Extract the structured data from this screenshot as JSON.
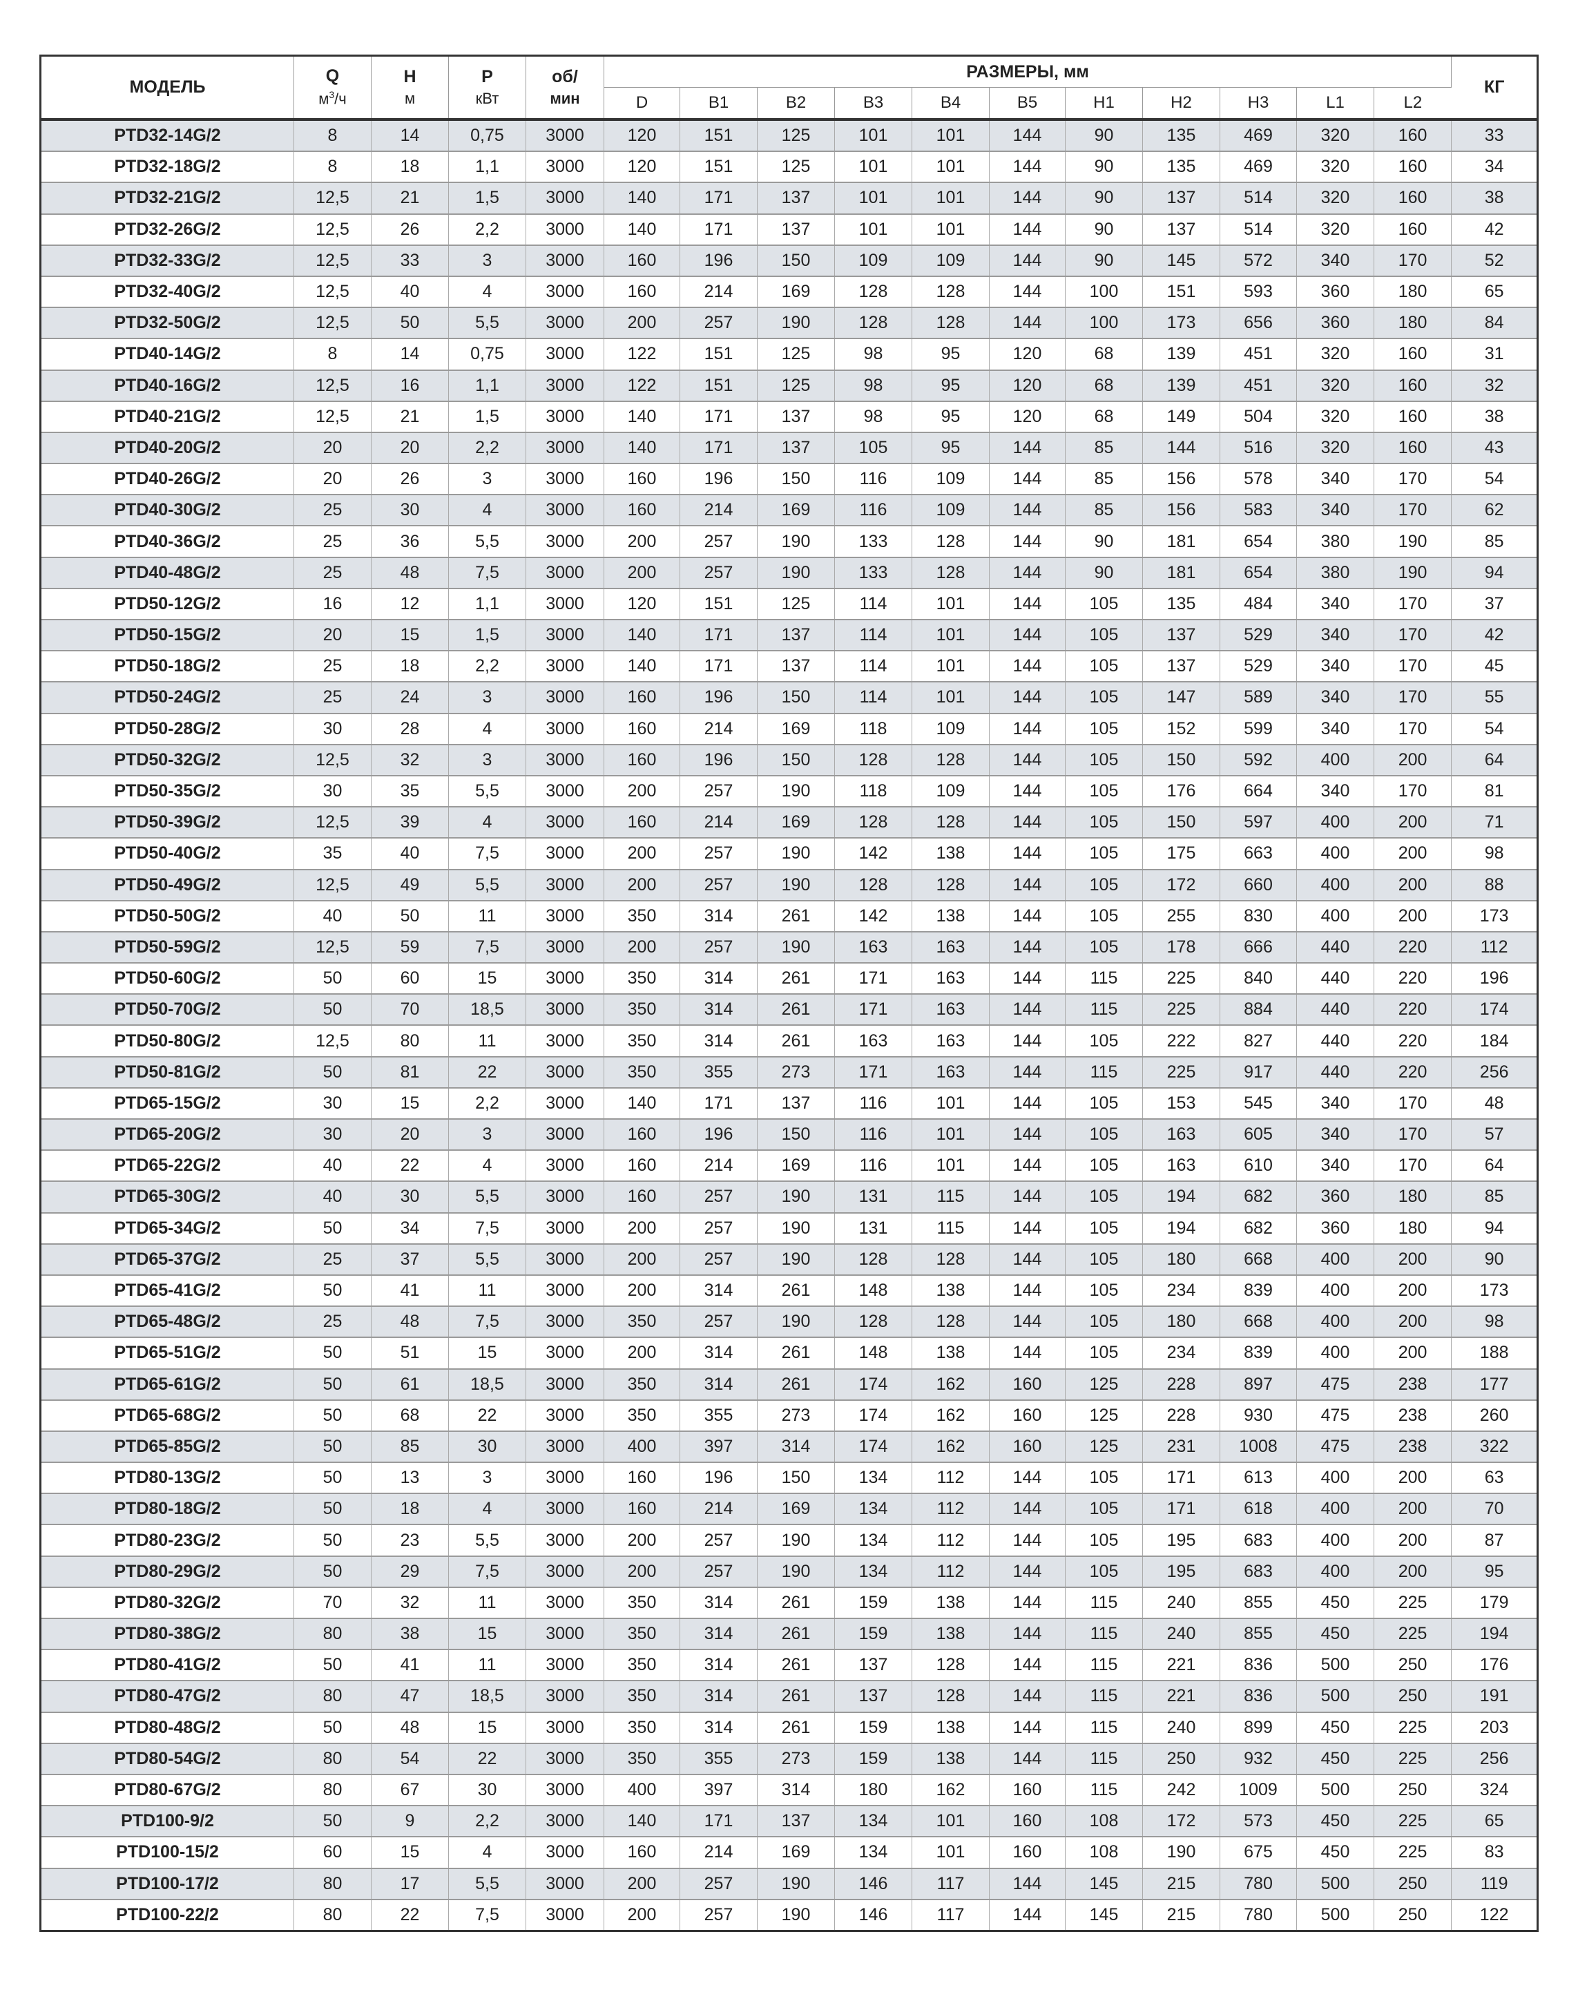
{
  "header": {
    "model": "МОДЕЛЬ",
    "q": "Q",
    "q_unit_base": "м",
    "q_unit_sup": "3",
    "q_unit_rest": "/ч",
    "h": "H",
    "h_unit": "м",
    "p": "P",
    "p_unit": "кВт",
    "rpm": "об/",
    "rpm_unit": "мин",
    "dimensions": "РАЗМЕРЫ, мм",
    "dim_columns": [
      "D",
      "B1",
      "B2",
      "B3",
      "B4",
      "B5",
      "H1",
      "H2",
      "H3",
      "L1",
      "L2"
    ],
    "kg": "КГ"
  },
  "rows": [
    [
      "PTD32-14G/2",
      "8",
      "14",
      "0,75",
      "3000",
      "120",
      "151",
      "125",
      "101",
      "101",
      "144",
      "90",
      "135",
      "469",
      "320",
      "160",
      "33"
    ],
    [
      "PTD32-18G/2",
      "8",
      "18",
      "1,1",
      "3000",
      "120",
      "151",
      "125",
      "101",
      "101",
      "144",
      "90",
      "135",
      "469",
      "320",
      "160",
      "34"
    ],
    [
      "PTD32-21G/2",
      "12,5",
      "21",
      "1,5",
      "3000",
      "140",
      "171",
      "137",
      "101",
      "101",
      "144",
      "90",
      "137",
      "514",
      "320",
      "160",
      "38"
    ],
    [
      "PTD32-26G/2",
      "12,5",
      "26",
      "2,2",
      "3000",
      "140",
      "171",
      "137",
      "101",
      "101",
      "144",
      "90",
      "137",
      "514",
      "320",
      "160",
      "42"
    ],
    [
      "PTD32-33G/2",
      "12,5",
      "33",
      "3",
      "3000",
      "160",
      "196",
      "150",
      "109",
      "109",
      "144",
      "90",
      "145",
      "572",
      "340",
      "170",
      "52"
    ],
    [
      "PTD32-40G/2",
      "12,5",
      "40",
      "4",
      "3000",
      "160",
      "214",
      "169",
      "128",
      "128",
      "144",
      "100",
      "151",
      "593",
      "360",
      "180",
      "65"
    ],
    [
      "PTD32-50G/2",
      "12,5",
      "50",
      "5,5",
      "3000",
      "200",
      "257",
      "190",
      "128",
      "128",
      "144",
      "100",
      "173",
      "656",
      "360",
      "180",
      "84"
    ],
    [
      "PTD40-14G/2",
      "8",
      "14",
      "0,75",
      "3000",
      "122",
      "151",
      "125",
      "98",
      "95",
      "120",
      "68",
      "139",
      "451",
      "320",
      "160",
      "31"
    ],
    [
      "PTD40-16G/2",
      "12,5",
      "16",
      "1,1",
      "3000",
      "122",
      "151",
      "125",
      "98",
      "95",
      "120",
      "68",
      "139",
      "451",
      "320",
      "160",
      "32"
    ],
    [
      "PTD40-21G/2",
      "12,5",
      "21",
      "1,5",
      "3000",
      "140",
      "171",
      "137",
      "98",
      "95",
      "120",
      "68",
      "149",
      "504",
      "320",
      "160",
      "38"
    ],
    [
      "PTD40-20G/2",
      "20",
      "20",
      "2,2",
      "3000",
      "140",
      "171",
      "137",
      "105",
      "95",
      "144",
      "85",
      "144",
      "516",
      "320",
      "160",
      "43"
    ],
    [
      "PTD40-26G/2",
      "20",
      "26",
      "3",
      "3000",
      "160",
      "196",
      "150",
      "116",
      "109",
      "144",
      "85",
      "156",
      "578",
      "340",
      "170",
      "54"
    ],
    [
      "PTD40-30G/2",
      "25",
      "30",
      "4",
      "3000",
      "160",
      "214",
      "169",
      "116",
      "109",
      "144",
      "85",
      "156",
      "583",
      "340",
      "170",
      "62"
    ],
    [
      "PTD40-36G/2",
      "25",
      "36",
      "5,5",
      "3000",
      "200",
      "257",
      "190",
      "133",
      "128",
      "144",
      "90",
      "181",
      "654",
      "380",
      "190",
      "85"
    ],
    [
      "PTD40-48G/2",
      "25",
      "48",
      "7,5",
      "3000",
      "200",
      "257",
      "190",
      "133",
      "128",
      "144",
      "90",
      "181",
      "654",
      "380",
      "190",
      "94"
    ],
    [
      "PTD50-12G/2",
      "16",
      "12",
      "1,1",
      "3000",
      "120",
      "151",
      "125",
      "114",
      "101",
      "144",
      "105",
      "135",
      "484",
      "340",
      "170",
      "37"
    ],
    [
      "PTD50-15G/2",
      "20",
      "15",
      "1,5",
      "3000",
      "140",
      "171",
      "137",
      "114",
      "101",
      "144",
      "105",
      "137",
      "529",
      "340",
      "170",
      "42"
    ],
    [
      "PTD50-18G/2",
      "25",
      "18",
      "2,2",
      "3000",
      "140",
      "171",
      "137",
      "114",
      "101",
      "144",
      "105",
      "137",
      "529",
      "340",
      "170",
      "45"
    ],
    [
      "PTD50-24G/2",
      "25",
      "24",
      "3",
      "3000",
      "160",
      "196",
      "150",
      "114",
      "101",
      "144",
      "105",
      "147",
      "589",
      "340",
      "170",
      "55"
    ],
    [
      "PTD50-28G/2",
      "30",
      "28",
      "4",
      "3000",
      "160",
      "214",
      "169",
      "118",
      "109",
      "144",
      "105",
      "152",
      "599",
      "340",
      "170",
      "54"
    ],
    [
      "PTD50-32G/2",
      "12,5",
      "32",
      "3",
      "3000",
      "160",
      "196",
      "150",
      "128",
      "128",
      "144",
      "105",
      "150",
      "592",
      "400",
      "200",
      "64"
    ],
    [
      "PTD50-35G/2",
      "30",
      "35",
      "5,5",
      "3000",
      "200",
      "257",
      "190",
      "118",
      "109",
      "144",
      "105",
      "176",
      "664",
      "340",
      "170",
      "81"
    ],
    [
      "PTD50-39G/2",
      "12,5",
      "39",
      "4",
      "3000",
      "160",
      "214",
      "169",
      "128",
      "128",
      "144",
      "105",
      "150",
      "597",
      "400",
      "200",
      "71"
    ],
    [
      "PTD50-40G/2",
      "35",
      "40",
      "7,5",
      "3000",
      "200",
      "257",
      "190",
      "142",
      "138",
      "144",
      "105",
      "175",
      "663",
      "400",
      "200",
      "98"
    ],
    [
      "PTD50-49G/2",
      "12,5",
      "49",
      "5,5",
      "3000",
      "200",
      "257",
      "190",
      "128",
      "128",
      "144",
      "105",
      "172",
      "660",
      "400",
      "200",
      "88"
    ],
    [
      "PTD50-50G/2",
      "40",
      "50",
      "11",
      "3000",
      "350",
      "314",
      "261",
      "142",
      "138",
      "144",
      "105",
      "255",
      "830",
      "400",
      "200",
      "173"
    ],
    [
      "PTD50-59G/2",
      "12,5",
      "59",
      "7,5",
      "3000",
      "200",
      "257",
      "190",
      "163",
      "163",
      "144",
      "105",
      "178",
      "666",
      "440",
      "220",
      "112"
    ],
    [
      "PTD50-60G/2",
      "50",
      "60",
      "15",
      "3000",
      "350",
      "314",
      "261",
      "171",
      "163",
      "144",
      "115",
      "225",
      "840",
      "440",
      "220",
      "196"
    ],
    [
      "PTD50-70G/2",
      "50",
      "70",
      "18,5",
      "3000",
      "350",
      "314",
      "261",
      "171",
      "163",
      "144",
      "115",
      "225",
      "884",
      "440",
      "220",
      "174"
    ],
    [
      "PTD50-80G/2",
      "12,5",
      "80",
      "11",
      "3000",
      "350",
      "314",
      "261",
      "163",
      "163",
      "144",
      "105",
      "222",
      "827",
      "440",
      "220",
      "184"
    ],
    [
      "PTD50-81G/2",
      "50",
      "81",
      "22",
      "3000",
      "350",
      "355",
      "273",
      "171",
      "163",
      "144",
      "115",
      "225",
      "917",
      "440",
      "220",
      "256"
    ],
    [
      "PTD65-15G/2",
      "30",
      "15",
      "2,2",
      "3000",
      "140",
      "171",
      "137",
      "116",
      "101",
      "144",
      "105",
      "153",
      "545",
      "340",
      "170",
      "48"
    ],
    [
      "PTD65-20G/2",
      "30",
      "20",
      "3",
      "3000",
      "160",
      "196",
      "150",
      "116",
      "101",
      "144",
      "105",
      "163",
      "605",
      "340",
      "170",
      "57"
    ],
    [
      "PTD65-22G/2",
      "40",
      "22",
      "4",
      "3000",
      "160",
      "214",
      "169",
      "116",
      "101",
      "144",
      "105",
      "163",
      "610",
      "340",
      "170",
      "64"
    ],
    [
      "PTD65-30G/2",
      "40",
      "30",
      "5,5",
      "3000",
      "160",
      "257",
      "190",
      "131",
      "115",
      "144",
      "105",
      "194",
      "682",
      "360",
      "180",
      "85"
    ],
    [
      "PTD65-34G/2",
      "50",
      "34",
      "7,5",
      "3000",
      "200",
      "257",
      "190",
      "131",
      "115",
      "144",
      "105",
      "194",
      "682",
      "360",
      "180",
      "94"
    ],
    [
      "PTD65-37G/2",
      "25",
      "37",
      "5,5",
      "3000",
      "200",
      "257",
      "190",
      "128",
      "128",
      "144",
      "105",
      "180",
      "668",
      "400",
      "200",
      "90"
    ],
    [
      "PTD65-41G/2",
      "50",
      "41",
      "11",
      "3000",
      "200",
      "314",
      "261",
      "148",
      "138",
      "144",
      "105",
      "234",
      "839",
      "400",
      "200",
      "173"
    ],
    [
      "PTD65-48G/2",
      "25",
      "48",
      "7,5",
      "3000",
      "350",
      "257",
      "190",
      "128",
      "128",
      "144",
      "105",
      "180",
      "668",
      "400",
      "200",
      "98"
    ],
    [
      "PTD65-51G/2",
      "50",
      "51",
      "15",
      "3000",
      "200",
      "314",
      "261",
      "148",
      "138",
      "144",
      "105",
      "234",
      "839",
      "400",
      "200",
      "188"
    ],
    [
      "PTD65-61G/2",
      "50",
      "61",
      "18,5",
      "3000",
      "350",
      "314",
      "261",
      "174",
      "162",
      "160",
      "125",
      "228",
      "897",
      "475",
      "238",
      "177"
    ],
    [
      "PTD65-68G/2",
      "50",
      "68",
      "22",
      "3000",
      "350",
      "355",
      "273",
      "174",
      "162",
      "160",
      "125",
      "228",
      "930",
      "475",
      "238",
      "260"
    ],
    [
      "PTD65-85G/2",
      "50",
      "85",
      "30",
      "3000",
      "400",
      "397",
      "314",
      "174",
      "162",
      "160",
      "125",
      "231",
      "1008",
      "475",
      "238",
      "322"
    ],
    [
      "PTD80-13G/2",
      "50",
      "13",
      "3",
      "3000",
      "160",
      "196",
      "150",
      "134",
      "112",
      "144",
      "105",
      "171",
      "613",
      "400",
      "200",
      "63"
    ],
    [
      "PTD80-18G/2",
      "50",
      "18",
      "4",
      "3000",
      "160",
      "214",
      "169",
      "134",
      "112",
      "144",
      "105",
      "171",
      "618",
      "400",
      "200",
      "70"
    ],
    [
      "PTD80-23G/2",
      "50",
      "23",
      "5,5",
      "3000",
      "200",
      "257",
      "190",
      "134",
      "112",
      "144",
      "105",
      "195",
      "683",
      "400",
      "200",
      "87"
    ],
    [
      "PTD80-29G/2",
      "50",
      "29",
      "7,5",
      "3000",
      "200",
      "257",
      "190",
      "134",
      "112",
      "144",
      "105",
      "195",
      "683",
      "400",
      "200",
      "95"
    ],
    [
      "PTD80-32G/2",
      "70",
      "32",
      "11",
      "3000",
      "350",
      "314",
      "261",
      "159",
      "138",
      "144",
      "115",
      "240",
      "855",
      "450",
      "225",
      "179"
    ],
    [
      "PTD80-38G/2",
      "80",
      "38",
      "15",
      "3000",
      "350",
      "314",
      "261",
      "159",
      "138",
      "144",
      "115",
      "240",
      "855",
      "450",
      "225",
      "194"
    ],
    [
      "PTD80-41G/2",
      "50",
      "41",
      "11",
      "3000",
      "350",
      "314",
      "261",
      "137",
      "128",
      "144",
      "115",
      "221",
      "836",
      "500",
      "250",
      "176"
    ],
    [
      "PTD80-47G/2",
      "80",
      "47",
      "18,5",
      "3000",
      "350",
      "314",
      "261",
      "137",
      "128",
      "144",
      "115",
      "221",
      "836",
      "500",
      "250",
      "191"
    ],
    [
      "PTD80-48G/2",
      "50",
      "48",
      "15",
      "3000",
      "350",
      "314",
      "261",
      "159",
      "138",
      "144",
      "115",
      "240",
      "899",
      "450",
      "225",
      "203"
    ],
    [
      "PTD80-54G/2",
      "80",
      "54",
      "22",
      "3000",
      "350",
      "355",
      "273",
      "159",
      "138",
      "144",
      "115",
      "250",
      "932",
      "450",
      "225",
      "256"
    ],
    [
      "PTD80-67G/2",
      "80",
      "67",
      "30",
      "3000",
      "400",
      "397",
      "314",
      "180",
      "162",
      "160",
      "115",
      "242",
      "1009",
      "500",
      "250",
      "324"
    ],
    [
      "PTD100-9/2",
      "50",
      "9",
      "2,2",
      "3000",
      "140",
      "171",
      "137",
      "134",
      "101",
      "160",
      "108",
      "172",
      "573",
      "450",
      "225",
      "65"
    ],
    [
      "PTD100-15/2",
      "60",
      "15",
      "4",
      "3000",
      "160",
      "214",
      "169",
      "134",
      "101",
      "160",
      "108",
      "190",
      "675",
      "450",
      "225",
      "83"
    ],
    [
      "PTD100-17/2",
      "80",
      "17",
      "5,5",
      "3000",
      "200",
      "257",
      "190",
      "146",
      "117",
      "144",
      "145",
      "215",
      "780",
      "500",
      "250",
      "119"
    ],
    [
      "PTD100-22/2",
      "80",
      "22",
      "7,5",
      "3000",
      "200",
      "257",
      "190",
      "146",
      "117",
      "144",
      "145",
      "215",
      "780",
      "500",
      "250",
      "122"
    ]
  ]
}
